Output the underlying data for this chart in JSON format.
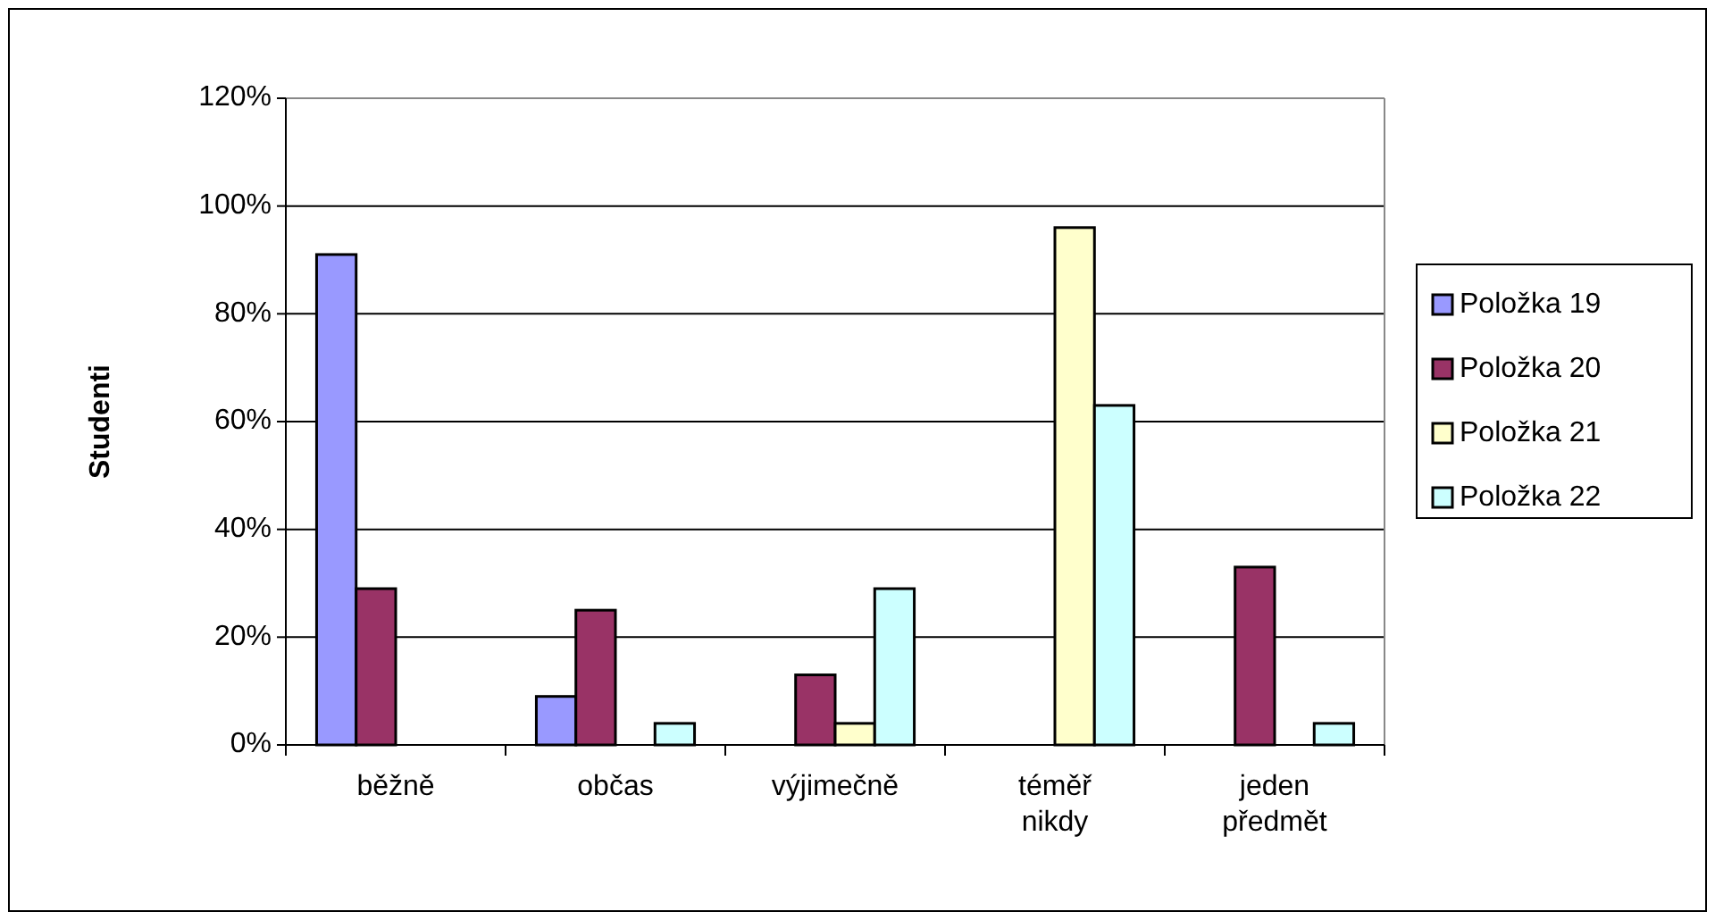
{
  "chart_data": {
    "type": "bar",
    "ylabel": "Studenti",
    "categories": [
      "běžně",
      "občas",
      "výjimečně",
      "téměř nikdy",
      "jeden předmět"
    ],
    "series": [
      {
        "name": "Položka 19",
        "color": "#9999ff",
        "values": [
          91,
          9,
          null,
          null,
          null
        ]
      },
      {
        "name": "Položka 20",
        "color": "#993366",
        "values": [
          29,
          25,
          13,
          null,
          33
        ]
      },
      {
        "name": "Položka 21",
        "color": "#ffffcc",
        "values": [
          null,
          null,
          4,
          96,
          null
        ]
      },
      {
        "name": "Položka 22",
        "color": "#ccffff",
        "values": [
          null,
          4,
          29,
          63,
          4
        ]
      }
    ],
    "ylim": [
      0,
      120
    ],
    "yticks": [
      {
        "value": 0,
        "label": "0%"
      },
      {
        "value": 20,
        "label": "20%"
      },
      {
        "value": 40,
        "label": "40%"
      },
      {
        "value": 60,
        "label": "60%"
      },
      {
        "value": 80,
        "label": "80%"
      },
      {
        "value": 100,
        "label": "100%"
      },
      {
        "value": 120,
        "label": "120%"
      }
    ],
    "grid": "y",
    "legend": "right"
  }
}
